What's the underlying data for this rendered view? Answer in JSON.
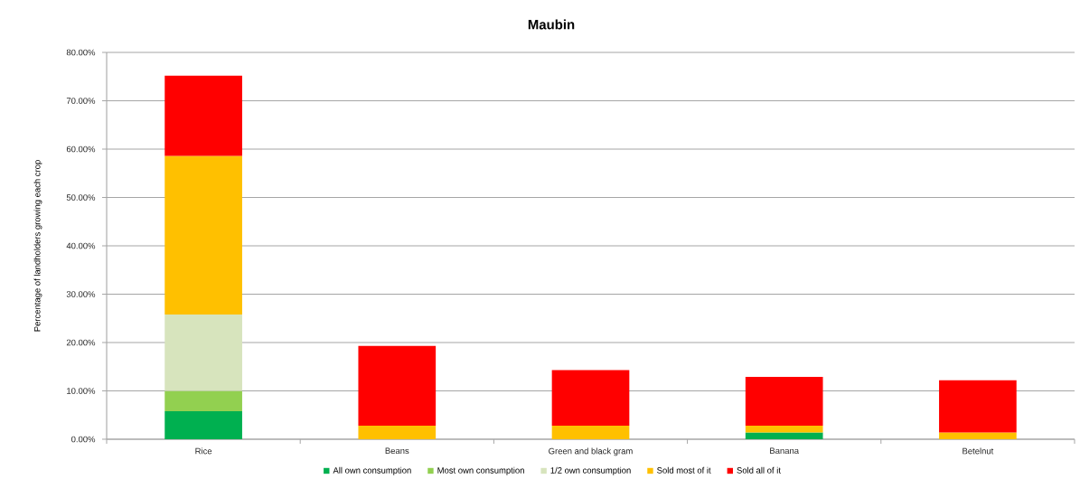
{
  "chart_data": {
    "type": "bar",
    "title": "Maubin",
    "ylabel": "Percentage of landholders growing each crop",
    "categories": [
      "Rice",
      "Beans",
      "Green and black gram",
      "Banana",
      "Betelnut"
    ],
    "stacked": true,
    "series": [
      {
        "name": "All own consumption",
        "color": "#00b050",
        "values": [
          5.8,
          0,
          0,
          1.4,
          0
        ]
      },
      {
        "name": "Most own consumption",
        "color": "#92d050",
        "values": [
          4.2,
          0,
          0,
          0,
          0
        ]
      },
      {
        "name": "1/2 own consumption",
        "color": "#d7e4bd",
        "values": [
          15.8,
          0,
          0,
          0,
          0
        ]
      },
      {
        "name": "Sold most of it",
        "color": "#ffc000",
        "values": [
          32.8,
          2.8,
          2.8,
          1.4,
          1.4
        ]
      },
      {
        "name": "Sold all of it",
        "color": "#ff0000",
        "values": [
          16.6,
          16.5,
          11.5,
          10.1,
          10.8
        ]
      }
    ],
    "ylim": [
      0,
      80
    ],
    "yticks": [
      {
        "value": 0,
        "label": "0.00%"
      },
      {
        "value": 10,
        "label": "10.00%"
      },
      {
        "value": 20,
        "label": "20.00%"
      },
      {
        "value": 30,
        "label": "30.00%"
      },
      {
        "value": 40,
        "label": "40.00%"
      },
      {
        "value": 50,
        "label": "50.00%"
      },
      {
        "value": 60,
        "label": "60.00%"
      },
      {
        "value": 70,
        "label": "70.00%"
      },
      {
        "value": 80,
        "label": "80.00%"
      }
    ],
    "grid": "y",
    "legend": "bottom"
  }
}
